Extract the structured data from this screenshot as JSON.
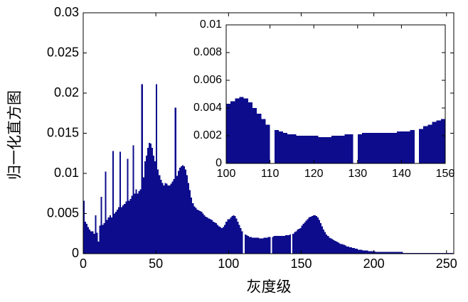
{
  "chart_data": {
    "type": "histogram",
    "x_label": "灰度级",
    "y_label": "归一化直方图",
    "color": "#0c0c8c",
    "xlim": [
      0,
      255
    ],
    "ylim": [
      0,
      0.03
    ],
    "xticks": [
      0,
      50,
      100,
      150,
      200,
      250
    ],
    "yticks": [
      0,
      0.005,
      0.01,
      0.015,
      0.02,
      0.025,
      0.03
    ],
    "inset": {
      "xlim": [
        100,
        150
      ],
      "ylim": [
        0,
        0.01
      ],
      "xticks": [
        100,
        110,
        120,
        130,
        140,
        150
      ],
      "yticks": [
        0,
        0.002,
        0.004,
        0.006,
        0.008,
        0.01
      ]
    },
    "x": [
      0,
      1,
      2,
      3,
      4,
      5,
      6,
      7,
      8,
      9,
      10,
      11,
      12,
      13,
      14,
      15,
      16,
      17,
      18,
      19,
      20,
      21,
      22,
      23,
      24,
      25,
      26,
      27,
      28,
      29,
      30,
      31,
      32,
      33,
      34,
      35,
      36,
      37,
      38,
      39,
      40,
      41,
      42,
      43,
      44,
      45,
      46,
      47,
      48,
      49,
      50,
      51,
      52,
      53,
      54,
      55,
      56,
      57,
      58,
      59,
      60,
      61,
      62,
      63,
      64,
      65,
      66,
      67,
      68,
      69,
      70,
      71,
      72,
      73,
      74,
      75,
      76,
      77,
      78,
      79,
      80,
      81,
      82,
      83,
      84,
      85,
      86,
      87,
      88,
      89,
      90,
      91,
      92,
      93,
      94,
      95,
      96,
      97,
      98,
      99,
      100,
      101,
      102,
      103,
      104,
      105,
      106,
      107,
      108,
      109,
      110,
      111,
      112,
      113,
      114,
      115,
      116,
      117,
      118,
      119,
      120,
      121,
      122,
      123,
      124,
      125,
      126,
      127,
      128,
      129,
      130,
      131,
      132,
      133,
      134,
      135,
      136,
      137,
      138,
      139,
      140,
      141,
      142,
      143,
      144,
      145,
      146,
      147,
      148,
      149,
      150,
      151,
      152,
      153,
      154,
      155,
      156,
      157,
      158,
      159,
      160,
      161,
      162,
      163,
      164,
      165,
      166,
      167,
      168,
      169,
      170,
      171,
      172,
      173,
      174,
      175,
      176,
      177,
      178,
      179,
      180,
      181,
      182,
      183,
      184,
      185,
      186,
      187,
      188,
      189,
      190,
      191,
      192,
      193,
      194,
      195,
      196,
      197,
      198,
      199,
      200,
      201,
      202,
      203,
      204,
      205,
      206,
      207,
      208,
      209,
      210,
      211,
      212,
      213,
      214,
      215,
      216,
      217,
      218,
      219,
      220,
      221,
      222,
      223,
      224,
      225,
      226,
      227,
      228,
      229,
      230,
      231,
      232,
      233,
      234,
      235,
      236,
      237,
      238,
      239,
      240,
      241,
      242,
      243,
      244,
      245,
      246,
      247,
      248,
      249,
      250,
      251,
      252,
      253,
      254,
      255
    ],
    "values": [
      0.0066,
      0.004,
      0.0037,
      0.0033,
      0.003,
      0.0028,
      0.0028,
      0.0025,
      0.0048,
      0.0026,
      0.0015,
      0.0035,
      0.0071,
      0.0036,
      0.0038,
      0.0102,
      0.0042,
      0.0045,
      0.0048,
      0.0045,
      0.0128,
      0.005,
      0.0052,
      0.0055,
      0.0058,
      0.0127,
      0.0058,
      0.006,
      0.0062,
      0.0065,
      0.0118,
      0.0066,
      0.0068,
      0.0072,
      0.0135,
      0.0075,
      0.008,
      0.0075,
      0.0078,
      0.008,
      0.0211,
      0.0095,
      0.0115,
      0.0122,
      0.0132,
      0.0138,
      0.0137,
      0.0132,
      0.0122,
      0.0115,
      0.0211,
      0.0105,
      0.0098,
      0.0092,
      0.0088,
      0.0085,
      0.0088,
      0.0087,
      0.0085,
      0.0085,
      0.0087,
      0.009,
      0.0093,
      0.0182,
      0.0097,
      0.0103,
      0.0107,
      0.0109,
      0.011,
      0.0109,
      0.0105,
      0.0098,
      0.0088,
      0.0079,
      0.007,
      0.0063,
      0.0059,
      0.0057,
      0.0055,
      0.0054,
      0.0053,
      0.0052,
      0.005,
      0.0048,
      0.0046,
      0.0045,
      0.0044,
      0.0043,
      0.0042,
      0.004,
      0.0039,
      0.0038,
      0.0036,
      0.0034,
      0.0033,
      0.0032,
      0.0033,
      0.0036,
      0.004,
      0.0043,
      0.0043,
      0.0045,
      0.0047,
      0.0048,
      0.0047,
      0.0044,
      0.004,
      0.0036,
      0.0032,
      0.0028,
      0,
      0.0024,
      0.0023,
      0.0022,
      0.0021,
      0.0021,
      0.002,
      0.002,
      0.002,
      0.002,
      0.002,
      0.0019,
      0.0019,
      0.0019,
      0.002,
      0.002,
      0.002,
      0.0021,
      0.0021,
      0,
      0.0021,
      0.0022,
      0.0022,
      0.0022,
      0.0022,
      0.0022,
      0.0022,
      0.0022,
      0.0022,
      0.0023,
      0.0023,
      0.0023,
      0.0024,
      0,
      0.0025,
      0.0027,
      0.0028,
      0.003,
      0.0031,
      0.0032,
      0.0035,
      0.0037,
      0.0039,
      0.0041,
      0.0043,
      0.0045,
      0.0046,
      0.0047,
      0.0048,
      0.0048,
      0.0047,
      0.0045,
      0.0042,
      0.0038,
      0.0034,
      0.003,
      0.0027,
      0.0024,
      0.0022,
      0.002,
      0.0019,
      0.0018,
      0.0017,
      0.0016,
      0.0015,
      0.0014,
      0.0013,
      0.0012,
      0.0012,
      0.0011,
      0.001,
      0.0009,
      0.0009,
      0.0008,
      0.0008,
      0.0007,
      0.0007,
      0.0006,
      0.0006,
      0.0005,
      0.0005,
      0.0005,
      0.0004,
      0.0004,
      0.0004,
      0.0004,
      0.0003,
      0.0003,
      0.0003,
      0.0003,
      0.0003,
      0.0002,
      0.0002,
      0.0002,
      0.0002,
      0.0002,
      0.0002,
      0.0002,
      0.0002,
      0.0002,
      0.0002,
      0.0002,
      0.0002,
      0.0002,
      0.0002,
      0.0002,
      0.0002,
      0.0002,
      0.0002,
      0.0002,
      0.0001,
      0.0001,
      0.0001,
      0.0001,
      0.0001,
      0.0001,
      0.0001,
      0.0001,
      0.0001,
      0.0001,
      0.0001,
      0.0001,
      0.0001,
      0.0001,
      0.0001,
      0.0001,
      0.0001,
      0.0001,
      0.0001,
      0.0001,
      0.0001,
      0.0001,
      0.0001,
      0.0001,
      0.0001,
      0.0001,
      0.0001,
      0.0001,
      0.0001,
      0.0001,
      0.0001,
      0.0001,
      0.0001,
      0.0001,
      0.0001,
      0.0001
    ]
  }
}
